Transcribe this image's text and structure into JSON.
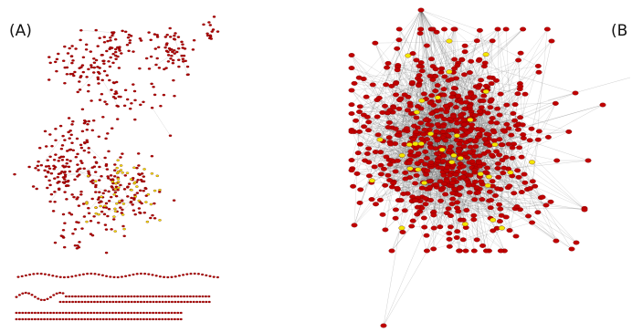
{
  "panels": [
    {
      "label": "(A)",
      "layout": "fragmented-clusters",
      "node_color": "#b30000",
      "highlight_color": "#f2e600",
      "edge_color": "#7a7a7a"
    },
    {
      "label": "(B",
      "layout": "dense-hairball",
      "node_color": "#c00000",
      "highlight_color": "#f2e600",
      "edge_color": "#555555"
    }
  ],
  "colors": {
    "background": "#ffffff",
    "node_outline": "#6a0000"
  }
}
